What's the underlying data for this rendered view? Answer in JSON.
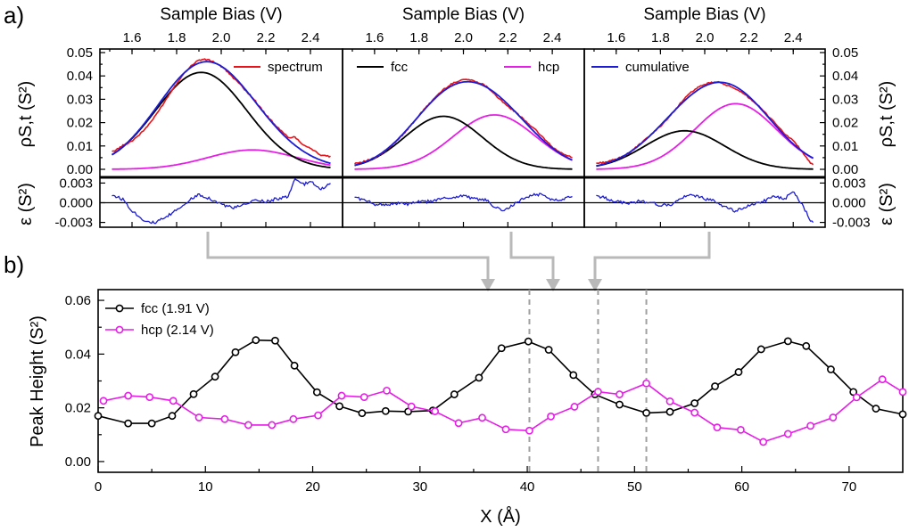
{
  "panel_labels": {
    "a": "a)",
    "b": "b)"
  },
  "colors": {
    "spectrum": "#e8141b",
    "fcc": "#000000",
    "hcp": "#e61ee6",
    "cumulative": "#1c1cd6",
    "residual": "#1c1cd6",
    "guide": "#b9b9b9"
  },
  "chart_data": [
    {
      "id": "a",
      "type": "line",
      "panels": [
        {
          "title": "Sample Bias (V)",
          "legend": [
            {
              "label": "spectrum",
              "series": "spectrum"
            }
          ],
          "fcc": {
            "amp": 0.0415,
            "center": 1.91,
            "sigma": 0.205
          },
          "hcp": {
            "amp": 0.0083,
            "center": 2.14,
            "sigma": 0.2
          },
          "residual": [
            [
              1.51,
              0.0012
            ],
            [
              1.56,
              0.0005
            ],
            [
              1.6,
              -0.0012
            ],
            [
              1.65,
              -0.0026
            ],
            [
              1.7,
              -0.0031
            ],
            [
              1.75,
              -0.0023
            ],
            [
              1.8,
              -0.0011
            ],
            [
              1.85,
              0.0002
            ],
            [
              1.9,
              0.0013
            ],
            [
              1.95,
              0.0006
            ],
            [
              2.0,
              -0.0002
            ],
            [
              2.05,
              -0.0008
            ],
            [
              2.1,
              -0.0004
            ],
            [
              2.15,
              0.0004
            ],
            [
              2.2,
              0.0002
            ],
            [
              2.25,
              0.0006
            ],
            [
              2.3,
              0.0009
            ],
            [
              2.33,
              0.0035
            ],
            [
              2.37,
              0.0028
            ],
            [
              2.4,
              0.0032
            ],
            [
              2.45,
              0.0021
            ],
            [
              2.48,
              0.0028
            ]
          ]
        },
        {
          "title": "Sample Bias (V)",
          "legend": [
            {
              "label": "fcc",
              "series": "fcc"
            },
            {
              "label": "hcp",
              "series": "hcp"
            }
          ],
          "fcc": {
            "amp": 0.0227,
            "center": 1.91,
            "sigma": 0.175
          },
          "hcp": {
            "amp": 0.0233,
            "center": 2.14,
            "sigma": 0.185
          },
          "residual": [
            [
              1.51,
              0.0009
            ],
            [
              1.56,
              0.0003
            ],
            [
              1.6,
              -0.0002
            ],
            [
              1.65,
              -0.0003
            ],
            [
              1.7,
              -0.0001
            ],
            [
              1.75,
              -0.0002
            ],
            [
              1.8,
              0.0001
            ],
            [
              1.85,
              0.0002
            ],
            [
              1.9,
              0.0006
            ],
            [
              1.95,
              0.0008
            ],
            [
              2.0,
              0.0011
            ],
            [
              2.05,
              0.0006
            ],
            [
              2.1,
              0.0004
            ],
            [
              2.15,
              -0.0008
            ],
            [
              2.18,
              -0.0013
            ],
            [
              2.22,
              -0.0004
            ],
            [
              2.27,
              0.0006
            ],
            [
              2.32,
              0.0013
            ],
            [
              2.36,
              0.0012
            ],
            [
              2.4,
              0.0004
            ],
            [
              2.45,
              0.0006
            ],
            [
              2.48,
              0.001
            ]
          ]
        },
        {
          "title": "Sample Bias (V)",
          "legend": [
            {
              "label": "cumulative",
              "series": "cumulative"
            }
          ],
          "fcc": {
            "amp": 0.0165,
            "center": 1.91,
            "sigma": 0.18
          },
          "hcp": {
            "amp": 0.0281,
            "center": 2.14,
            "sigma": 0.185
          },
          "residual": [
            [
              1.51,
              0.0011
            ],
            [
              1.56,
              0.0006
            ],
            [
              1.6,
              0.0002
            ],
            [
              1.65,
              -0.0001
            ],
            [
              1.7,
              0.0002
            ],
            [
              1.75,
              0.0001
            ],
            [
              1.8,
              -0.0004
            ],
            [
              1.85,
              -0.0003
            ],
            [
              1.9,
              0.0008
            ],
            [
              1.95,
              0.0012
            ],
            [
              2.0,
              0.0006
            ],
            [
              2.05,
              0.0002
            ],
            [
              2.1,
              -0.0008
            ],
            [
              2.14,
              -0.0013
            ],
            [
              2.18,
              -0.0007
            ],
            [
              2.22,
              -0.0002
            ],
            [
              2.27,
              0.0003
            ],
            [
              2.32,
              0.001
            ],
            [
              2.36,
              0.0006
            ],
            [
              2.4,
              0.0016
            ],
            [
              2.44,
              -0.0002
            ],
            [
              2.48,
              -0.0028
            ]
          ]
        }
      ],
      "xticks": [
        "1.6",
        "1.8",
        "2.0",
        "2.2",
        "2.4"
      ],
      "xlim": [
        1.48,
        2.52
      ],
      "ylim_top": [
        -0.003,
        0.05
      ],
      "yticks_top": [
        "0.00",
        "0.01",
        "0.02",
        "0.03",
        "0.04",
        "0.05"
      ],
      "ylim_bottom": [
        -0.0036,
        0.0036
      ],
      "yticks_bottom": [
        "-0.003",
        "0.000",
        "0.003"
      ],
      "ylabel_top": "ρS,t (S²)",
      "ylabel_bottom": "ε (S²)"
    },
    {
      "id": "b",
      "type": "line",
      "xlabel": "X (Å)",
      "ylabel": "Peak Height (S²)",
      "xlim": [
        0,
        75
      ],
      "ylim": [
        -0.004,
        0.064
      ],
      "xticks": [
        "0",
        "10",
        "20",
        "30",
        "40",
        "50",
        "60",
        "70"
      ],
      "yticks": [
        "0.00",
        "0.02",
        "0.04",
        "0.06"
      ],
      "series": [
        {
          "name": "fcc  (1.91 V)",
          "color": "#000000",
          "x": [
            0,
            2.8,
            5,
            6.9,
            8.9,
            10.9,
            12.8,
            14.7,
            16.5,
            18.3,
            20.4,
            22.5,
            24.6,
            26.8,
            28.9,
            31.2,
            33.2,
            35.5,
            37.6,
            40.1,
            42,
            44.3,
            46.3,
            48.6,
            51.1,
            53.3,
            55.6,
            57.5,
            59.7,
            61.8,
            64.3,
            66,
            68.3,
            70.4,
            72.5,
            75
          ],
          "y": [
            0.017,
            0.0142,
            0.0142,
            0.017,
            0.0251,
            0.0316,
            0.0407,
            0.0452,
            0.045,
            0.0357,
            0.0258,
            0.0206,
            0.018,
            0.0188,
            0.0186,
            0.019,
            0.025,
            0.0312,
            0.0422,
            0.0447,
            0.0416,
            0.0322,
            0.025,
            0.0212,
            0.0181,
            0.0185,
            0.0217,
            0.028,
            0.0333,
            0.0418,
            0.0448,
            0.043,
            0.0343,
            0.0259,
            0.0197,
            0.0176
          ]
        },
        {
          "name": "hcp (2.14 V)",
          "color": "#e61ee6",
          "x": [
            0.5,
            2.8,
            4.8,
            7,
            9.4,
            11.8,
            14,
            16.2,
            18.2,
            20.5,
            22.7,
            24.8,
            26.9,
            29.2,
            31.4,
            33.6,
            35.8,
            38,
            40.2,
            42.2,
            44.4,
            46.6,
            48.6,
            51.1,
            53.3,
            55.6,
            57.7,
            59.9,
            62,
            64.3,
            66.4,
            68.5,
            70.7,
            73.1,
            75
          ],
          "y": [
            0.0226,
            0.0245,
            0.024,
            0.0226,
            0.0164,
            0.0158,
            0.0136,
            0.0136,
            0.0158,
            0.0172,
            0.0245,
            0.024,
            0.0264,
            0.0205,
            0.0187,
            0.0143,
            0.0163,
            0.012,
            0.0115,
            0.0168,
            0.0204,
            0.026,
            0.025,
            0.0291,
            0.0224,
            0.0182,
            0.0127,
            0.0118,
            0.0073,
            0.0103,
            0.0133,
            0.0164,
            0.0239,
            0.0306,
            0.0259
          ]
        }
      ]
    }
  ]
}
